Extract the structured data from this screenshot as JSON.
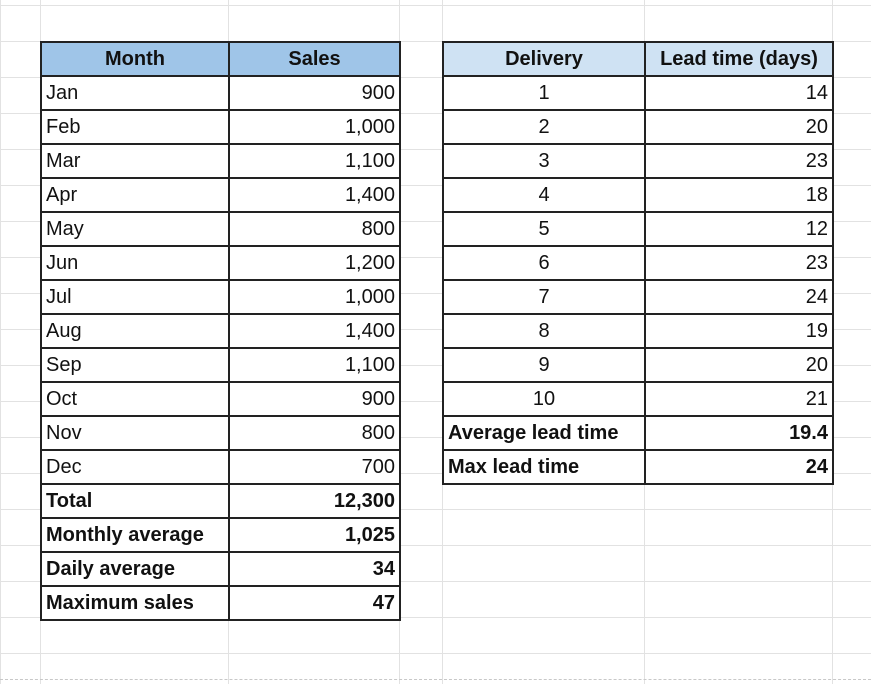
{
  "sales_table": {
    "headers": {
      "month": "Month",
      "sales": "Sales"
    },
    "rows": [
      {
        "month": "Jan",
        "sales": "900"
      },
      {
        "month": "Feb",
        "sales": "1,000"
      },
      {
        "month": "Mar",
        "sales": "1,100"
      },
      {
        "month": "Apr",
        "sales": "1,400"
      },
      {
        "month": "May",
        "sales": "800"
      },
      {
        "month": "Jun",
        "sales": "1,200"
      },
      {
        "month": "Jul",
        "sales": "1,000"
      },
      {
        "month": "Aug",
        "sales": "1,400"
      },
      {
        "month": "Sep",
        "sales": "1,100"
      },
      {
        "month": "Oct",
        "sales": "900"
      },
      {
        "month": "Nov",
        "sales": "800"
      },
      {
        "month": "Dec",
        "sales": "700"
      }
    ],
    "summary": [
      {
        "label": "Total",
        "value": "12,300"
      },
      {
        "label": "Monthly average",
        "value": "1,025"
      },
      {
        "label": "Daily average",
        "value": "34"
      },
      {
        "label": "Maximum sales",
        "value": "47"
      }
    ],
    "header_color": "#9fc5e8"
  },
  "lead_table": {
    "headers": {
      "delivery": "Delivery",
      "lead_time": "Lead time (days)"
    },
    "rows": [
      {
        "delivery": "1",
        "lead_time": "14"
      },
      {
        "delivery": "2",
        "lead_time": "20"
      },
      {
        "delivery": "3",
        "lead_time": "23"
      },
      {
        "delivery": "4",
        "lead_time": "18"
      },
      {
        "delivery": "5",
        "lead_time": "12"
      },
      {
        "delivery": "6",
        "lead_time": "23"
      },
      {
        "delivery": "7",
        "lead_time": "24"
      },
      {
        "delivery": "8",
        "lead_time": "19"
      },
      {
        "delivery": "9",
        "lead_time": "20"
      },
      {
        "delivery": "10",
        "lead_time": "21"
      }
    ],
    "summary": [
      {
        "label": "Average lead time",
        "value": "19.4"
      },
      {
        "label": "Max lead time",
        "value": "24"
      }
    ],
    "header_color": "#cfe2f3"
  }
}
